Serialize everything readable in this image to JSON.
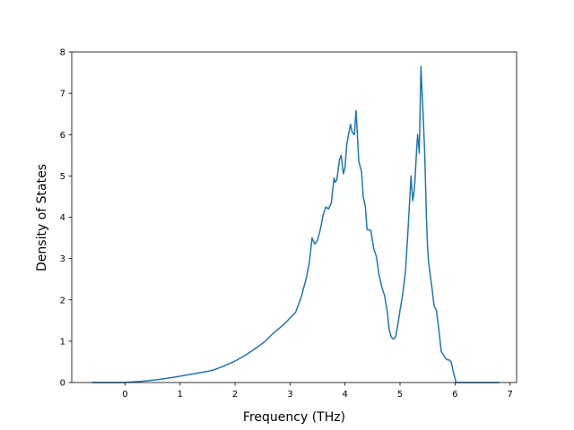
{
  "chart_data": {
    "type": "line",
    "title": "",
    "xlabel": "Frequency (THz)",
    "ylabel": "Density of States",
    "xlim": [
      -0.97,
      7.12
    ],
    "ylim": [
      0,
      8
    ],
    "xticks": [
      0,
      1,
      2,
      3,
      4,
      5,
      6,
      7
    ],
    "yticks": [
      0,
      1,
      2,
      3,
      4,
      5,
      6,
      7,
      8
    ],
    "grid": false,
    "legend": "none",
    "series": [
      {
        "color": "#1f77b4",
        "x": [
          -0.6,
          -0.3,
          0.0,
          0.3,
          0.6,
          0.9,
          1.2,
          1.5,
          1.6,
          1.8,
          2.0,
          2.2,
          2.4,
          2.55,
          2.7,
          2.9,
          3.1,
          3.2,
          3.3,
          3.35,
          3.4,
          3.45,
          3.5,
          3.55,
          3.6,
          3.65,
          3.7,
          3.75,
          3.8,
          3.82,
          3.85,
          3.9,
          3.93,
          3.97,
          4.0,
          4.03,
          4.07,
          4.1,
          4.13,
          4.17,
          4.2,
          4.22,
          4.25,
          4.3,
          4.33,
          4.37,
          4.4,
          4.43,
          4.47,
          4.52,
          4.57,
          4.62,
          4.67,
          4.72,
          4.77,
          4.8,
          4.84,
          4.88,
          4.92,
          4.96,
          5.0,
          5.05,
          5.1,
          5.15,
          5.2,
          5.23,
          5.25,
          5.27,
          5.3,
          5.32,
          5.35,
          5.38,
          5.42,
          5.45,
          5.48,
          5.5,
          5.52,
          5.55,
          5.58,
          5.62,
          5.66,
          5.7,
          5.75,
          5.8,
          5.83,
          5.86,
          5.89,
          5.93,
          5.97,
          6.02,
          6.08,
          6.12,
          6.14,
          6.18,
          6.3,
          6.5,
          6.8
        ],
        "y": [
          0.0,
          0.0,
          0.0,
          0.03,
          0.07,
          0.13,
          0.2,
          0.27,
          0.3,
          0.4,
          0.52,
          0.67,
          0.85,
          1.0,
          1.2,
          1.42,
          1.7,
          2.05,
          2.55,
          2.9,
          3.5,
          3.35,
          3.45,
          3.7,
          4.05,
          4.25,
          4.2,
          4.35,
          4.95,
          4.85,
          4.9,
          5.4,
          5.5,
          5.05,
          5.2,
          5.75,
          6.05,
          6.25,
          6.05,
          6.0,
          6.58,
          6.1,
          5.35,
          5.1,
          4.5,
          4.25,
          3.7,
          3.7,
          3.68,
          3.25,
          3.05,
          2.6,
          2.3,
          2.1,
          1.7,
          1.3,
          1.1,
          1.05,
          1.1,
          1.4,
          1.75,
          2.15,
          2.7,
          3.8,
          5.0,
          4.4,
          4.55,
          4.85,
          5.6,
          6.0,
          5.55,
          7.65,
          6.5,
          5.5,
          4.0,
          3.3,
          2.9,
          2.6,
          2.3,
          1.85,
          1.75,
          1.35,
          0.75,
          0.65,
          0.58,
          0.55,
          0.55,
          0.5,
          0.25,
          0.0,
          0.0,
          0.0,
          0.0,
          0.0,
          0.0,
          0.0,
          0.0
        ]
      }
    ]
  }
}
